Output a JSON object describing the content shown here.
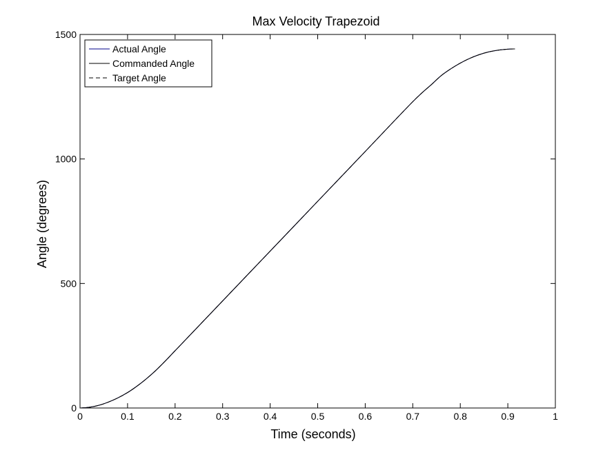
{
  "chart_data": {
    "type": "line",
    "title": "Max Velocity Trapezoid",
    "xlabel": "Time (seconds)",
    "ylabel": "Angle (degrees)",
    "xlim": [
      0,
      1
    ],
    "ylim": [
      0,
      1500
    ],
    "xticks": [
      0,
      0.1,
      0.2,
      0.3,
      0.4,
      0.5,
      0.6,
      0.7,
      0.8,
      0.9,
      1
    ],
    "xtick_labels": [
      "0",
      "0.1",
      "0.2",
      "0.3",
      "0.4",
      "0.5",
      "0.6",
      "0.7",
      "0.8",
      "0.9",
      "1"
    ],
    "yticks": [
      0,
      500,
      1000,
      1500
    ],
    "ytick_labels": [
      "0",
      "500",
      "1000",
      "1500"
    ],
    "grid": false,
    "legend_position": "top-left",
    "x": [
      0,
      0.02,
      0.04,
      0.06,
      0.08,
      0.1,
      0.12,
      0.14,
      0.16,
      0.18,
      0.2,
      0.24,
      0.3,
      0.4,
      0.5,
      0.6,
      0.7,
      0.74,
      0.76,
      0.78,
      0.8,
      0.82,
      0.84,
      0.86,
      0.88,
      0.9,
      0.915
    ],
    "series": [
      {
        "name": "Actual Angle",
        "color": "#00008b",
        "dash": "solid",
        "values": [
          0,
          3,
          11,
          24,
          41,
          62,
          88,
          118,
          152,
          190,
          230,
          310,
          430,
          630,
          830,
          1030,
          1230,
          1300,
          1335,
          1362,
          1385,
          1404,
          1419,
          1430,
          1437,
          1441,
          1442
        ]
      },
      {
        "name": "Commanded Angle",
        "color": "#000000",
        "dash": "solid",
        "values": [
          0,
          3,
          11,
          24,
          41,
          62,
          88,
          118,
          152,
          190,
          230,
          310,
          430,
          630,
          830,
          1030,
          1230,
          1300,
          1335,
          1362,
          1385,
          1404,
          1419,
          1430,
          1437,
          1441,
          1442
        ]
      },
      {
        "name": "Target Angle",
        "color": "#000000",
        "dash": "dashed",
        "values": [
          0,
          3,
          11,
          24,
          41,
          62,
          88,
          118,
          152,
          190,
          230,
          310,
          430,
          630,
          830,
          1030,
          1230,
          1300,
          1335,
          1362,
          1385,
          1404,
          1419,
          1430,
          1437,
          1441,
          1442
        ]
      }
    ]
  }
}
